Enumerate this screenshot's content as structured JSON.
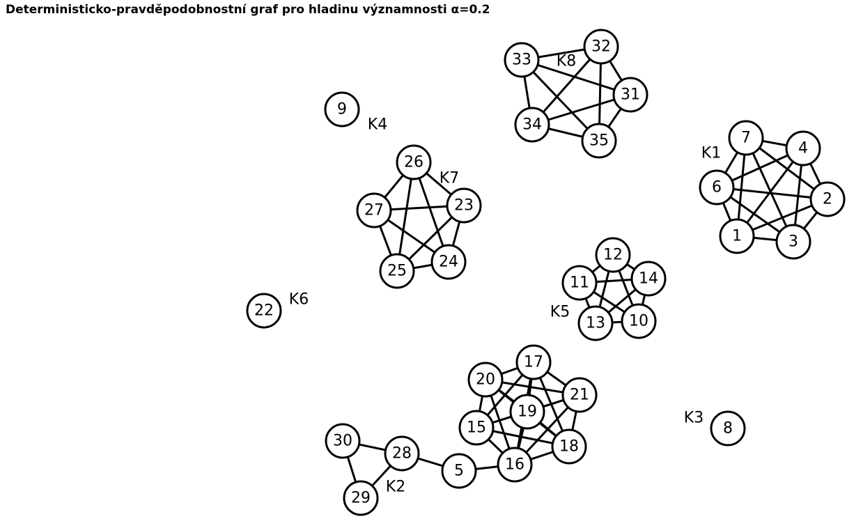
{
  "title": "Deterministicko-pravděpodobnostní graf pro hladinu významnosti α=0.2",
  "nodes": [
    "1",
    "2",
    "3",
    "4",
    "5",
    "6",
    "7",
    "8",
    "9",
    "10",
    "11",
    "12",
    "13",
    "14",
    "15",
    "16",
    "17",
    "18",
    "19",
    "20",
    "21",
    "22",
    "23",
    "24",
    "25",
    "26",
    "27",
    "28",
    "29",
    "30",
    "31",
    "32",
    "33",
    "34",
    "35"
  ],
  "clusters": [
    {
      "label": "K1",
      "members": [
        "1",
        "2",
        "3",
        "4",
        "6",
        "7"
      ]
    },
    {
      "label": "K2",
      "members": [
        "5",
        "15",
        "16",
        "17",
        "18",
        "19",
        "20",
        "21",
        "28",
        "29",
        "30"
      ]
    },
    {
      "label": "K3",
      "members": [
        "8"
      ]
    },
    {
      "label": "K4",
      "members": [
        "9"
      ]
    },
    {
      "label": "K5",
      "members": [
        "10",
        "11",
        "12",
        "13",
        "14"
      ]
    },
    {
      "label": "K6",
      "members": [
        "22"
      ]
    },
    {
      "label": "K7",
      "members": [
        "23",
        "24",
        "25",
        "26",
        "27"
      ]
    },
    {
      "label": "K8",
      "members": [
        "31",
        "32",
        "33",
        "34",
        "35"
      ]
    }
  ],
  "edges": [
    [
      "7",
      "4"
    ],
    [
      "7",
      "6"
    ],
    [
      "7",
      "1"
    ],
    [
      "7",
      "3"
    ],
    [
      "7",
      "2"
    ],
    [
      "4",
      "6"
    ],
    [
      "4",
      "1"
    ],
    [
      "4",
      "3"
    ],
    [
      "4",
      "2"
    ],
    [
      "6",
      "2"
    ],
    [
      "6",
      "1"
    ],
    [
      "6",
      "3"
    ],
    [
      "2",
      "1"
    ],
    [
      "2",
      "3"
    ],
    [
      "1",
      "3"
    ],
    [
      "33",
      "32"
    ],
    [
      "33",
      "31"
    ],
    [
      "33",
      "34"
    ],
    [
      "33",
      "35"
    ],
    [
      "32",
      "31"
    ],
    [
      "32",
      "34"
    ],
    [
      "32",
      "35"
    ],
    [
      "31",
      "34"
    ],
    [
      "31",
      "35"
    ],
    [
      "34",
      "35"
    ],
    [
      "26",
      "27"
    ],
    [
      "26",
      "23"
    ],
    [
      "26",
      "25"
    ],
    [
      "26",
      "24"
    ],
    [
      "27",
      "23"
    ],
    [
      "27",
      "25"
    ],
    [
      "27",
      "24"
    ],
    [
      "23",
      "25"
    ],
    [
      "23",
      "24"
    ],
    [
      "25",
      "24"
    ],
    [
      "12",
      "11"
    ],
    [
      "12",
      "14"
    ],
    [
      "12",
      "13"
    ],
    [
      "12",
      "10"
    ],
    [
      "11",
      "14"
    ],
    [
      "11",
      "13"
    ],
    [
      "11",
      "10"
    ],
    [
      "14",
      "13"
    ],
    [
      "14",
      "10"
    ],
    [
      "13",
      "10"
    ],
    [
      "20",
      "17"
    ],
    [
      "20",
      "21"
    ],
    [
      "20",
      "19"
    ],
    [
      "20",
      "15"
    ],
    [
      "20",
      "16"
    ],
    [
      "20",
      "18"
    ],
    [
      "17",
      "21"
    ],
    [
      "17",
      "19"
    ],
    [
      "17",
      "15"
    ],
    [
      "17",
      "16"
    ],
    [
      "17",
      "18"
    ],
    [
      "21",
      "19"
    ],
    [
      "21",
      "15"
    ],
    [
      "21",
      "16"
    ],
    [
      "21",
      "18"
    ],
    [
      "19",
      "15"
    ],
    [
      "19",
      "16"
    ],
    [
      "19",
      "18"
    ],
    [
      "15",
      "16"
    ],
    [
      "15",
      "18"
    ],
    [
      "16",
      "18"
    ],
    [
      "16",
      "5"
    ],
    [
      "5",
      "28"
    ],
    [
      "28",
      "30"
    ],
    [
      "28",
      "29"
    ],
    [
      "30",
      "29"
    ]
  ]
}
